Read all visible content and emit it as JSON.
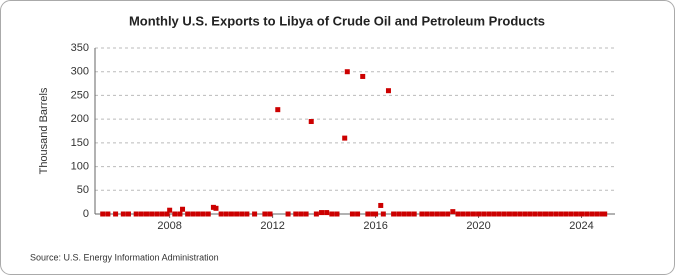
{
  "chart_data": {
    "type": "scatter",
    "title": "Monthly U.S. Exports to Libya of Crude Oil and Petroleum Products",
    "y_label": "Thousand Barrels",
    "source": "Source: U.S. Energy Information Administration",
    "color": "#cc0000",
    "grid": true,
    "xlim": [
      2005.1,
      2025.3
    ],
    "xticks": [
      2008,
      2012,
      2016,
      2020,
      2024
    ],
    "ylim": [
      0,
      350
    ],
    "yticks": [
      0,
      50,
      100,
      150,
      200,
      250,
      300,
      350
    ],
    "x": [
      2005.4,
      2005.6,
      2005.9,
      2006.2,
      2006.4,
      2006.7,
      2006.9,
      2007.1,
      2007.3,
      2007.5,
      2007.7,
      2007.9,
      2008.0,
      2008.2,
      2008.4,
      2008.5,
      2008.7,
      2008.9,
      2009.1,
      2009.3,
      2009.5,
      2009.7,
      2009.8,
      2010.0,
      2010.2,
      2010.4,
      2010.6,
      2010.8,
      2011.0,
      2011.3,
      2011.7,
      2011.9,
      2012.2,
      2012.6,
      2012.9,
      2013.1,
      2013.3,
      2013.5,
      2013.7,
      2013.9,
      2014.1,
      2014.3,
      2014.5,
      2014.8,
      2014.9,
      2015.1,
      2015.3,
      2015.5,
      2015.7,
      2015.9,
      2016.0,
      2016.2,
      2016.3,
      2016.5,
      2016.7,
      2016.9,
      2017.1,
      2017.3,
      2017.5,
      2017.8,
      2018.0,
      2018.2,
      2018.4,
      2018.6,
      2018.8,
      2019.0,
      2019.2,
      2019.4,
      2019.6,
      2019.8,
      2020.0,
      2020.2,
      2020.4,
      2020.6,
      2020.8,
      2021.0,
      2021.2,
      2021.4,
      2021.6,
      2021.8,
      2022.0,
      2022.2,
      2022.4,
      2022.6,
      2022.8,
      2023.0,
      2023.2,
      2023.4,
      2023.6,
      2023.8,
      2024.0,
      2024.2,
      2024.4,
      2024.6,
      2024.8,
      2024.9
    ],
    "values": [
      0,
      0,
      0,
      0,
      0,
      0,
      0,
      0,
      0,
      0,
      0,
      0,
      8,
      0,
      0,
      10,
      0,
      0,
      0,
      0,
      0,
      14,
      12,
      0,
      0,
      0,
      0,
      0,
      0,
      0,
      0,
      0,
      220,
      0,
      0,
      0,
      0,
      195,
      0,
      3,
      3,
      0,
      0,
      160,
      300,
      0,
      0,
      290,
      0,
      0,
      0,
      18,
      0,
      260,
      0,
      0,
      0,
      0,
      0,
      0,
      0,
      0,
      0,
      0,
      0,
      5,
      0,
      0,
      0,
      0,
      0,
      0,
      0,
      0,
      0,
      0,
      0,
      0,
      0,
      0,
      0,
      0,
      0,
      0,
      0,
      0,
      0,
      0,
      0,
      0,
      0,
      0,
      0,
      0,
      0,
      0
    ]
  }
}
